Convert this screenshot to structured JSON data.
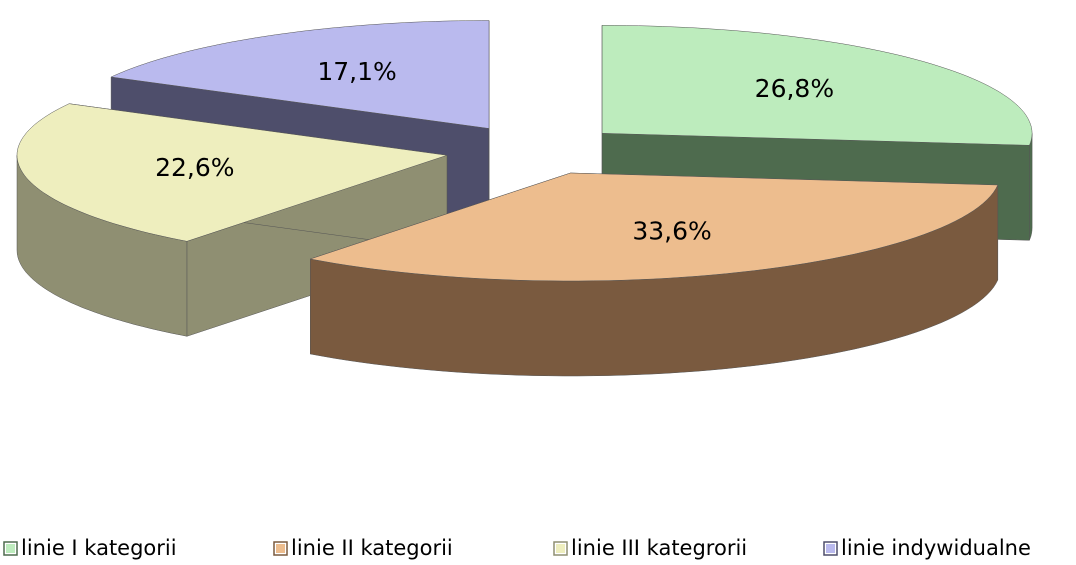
{
  "chart_data": {
    "type": "pie",
    "categories": [
      "linie I kategorii",
      "linie II kategorii",
      "linie III kategrorii",
      "linie indywidualne"
    ],
    "values": [
      26.8,
      33.6,
      22.6,
      17.1
    ],
    "value_labels": [
      "26,8%",
      "33,6%",
      "22,6%",
      "17,1%"
    ],
    "colors": [
      "#bdecbd",
      "#edbd8e",
      "#eeeebe",
      "#babaee"
    ],
    "side_colors": [
      "#4e6b4e",
      "#7a5a3f",
      "#8f8f72",
      "#4e4e6b"
    ],
    "exploded": true,
    "legend": "bottom"
  }
}
